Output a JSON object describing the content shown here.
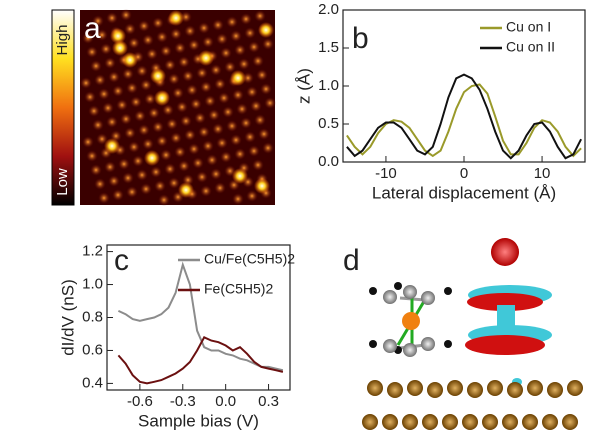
{
  "chart_data": [
    {
      "type": "image",
      "label": "a",
      "colorbar_labels": [
        "High",
        "Low"
      ]
    },
    {
      "type": "line",
      "label": "b",
      "xlabel": "Lateral displacement (Å)",
      "ylabel": "z (Å)",
      "x": [
        -15,
        -14,
        -13,
        -12,
        -11,
        -10,
        -9,
        -8,
        -7,
        -6,
        -5,
        -4,
        -3,
        -2,
        -1,
        0,
        1,
        2,
        3,
        4,
        5,
        6,
        7,
        8,
        9,
        10,
        11,
        12,
        13,
        14,
        15
      ],
      "series": [
        {
          "name": "Cu on I",
          "color": "#9a9a2a",
          "values": [
            0.35,
            0.2,
            0.1,
            0.2,
            0.38,
            0.5,
            0.55,
            0.53,
            0.45,
            0.3,
            0.15,
            0.08,
            0.15,
            0.4,
            0.7,
            0.92,
            1.0,
            1.02,
            0.9,
            0.6,
            0.28,
            0.1,
            0.1,
            0.25,
            0.45,
            0.55,
            0.52,
            0.4,
            0.2,
            0.08,
            0.18
          ]
        },
        {
          "name": "Cu on II",
          "color": "#111111",
          "values": [
            0.2,
            0.08,
            0.15,
            0.3,
            0.45,
            0.52,
            0.52,
            0.45,
            0.3,
            0.15,
            0.1,
            0.2,
            0.5,
            0.85,
            1.1,
            1.15,
            1.1,
            0.95,
            0.7,
            0.4,
            0.15,
            0.05,
            0.15,
            0.35,
            0.5,
            0.52,
            0.4,
            0.2,
            0.05,
            0.1,
            0.3
          ]
        }
      ],
      "xlim": [
        -15.5,
        15.5
      ],
      "xticks": [
        -10,
        0,
        10
      ],
      "ylim": [
        0,
        2
      ],
      "yticks": [
        {
          "value": 0,
          "label": "0.0"
        },
        {
          "value": 0.5,
          "label": "0.5"
        },
        {
          "value": 1,
          "label": "1.0"
        },
        {
          "value": 1.5,
          "label": "1.5"
        },
        {
          "value": 2,
          "label": "2.0"
        }
      ]
    },
    {
      "type": "line",
      "label": "c",
      "xlabel": "Sample bias (V)",
      "ylabel": "dI/dV (nS)",
      "x": [
        -0.75,
        -0.7,
        -0.65,
        -0.6,
        -0.55,
        -0.5,
        -0.45,
        -0.4,
        -0.35,
        -0.3,
        -0.25,
        -0.2,
        -0.15,
        -0.1,
        -0.05,
        0,
        0.05,
        0.1,
        0.15,
        0.2,
        0.25,
        0.3,
        0.35,
        0.4
      ],
      "series": [
        {
          "name": "Cu/Fe(C5H5)2",
          "color": "#8c8c8c",
          "values": [
            0.84,
            0.82,
            0.79,
            0.78,
            0.79,
            0.8,
            0.82,
            0.86,
            0.95,
            1.12,
            1.0,
            0.72,
            0.62,
            0.6,
            0.6,
            0.58,
            0.57,
            0.55,
            0.54,
            0.52,
            0.5,
            0.5,
            0.49,
            0.48
          ]
        },
        {
          "name": "Fe(C5H5)2",
          "color": "#6b1010",
          "values": [
            0.57,
            0.52,
            0.45,
            0.41,
            0.4,
            0.41,
            0.42,
            0.44,
            0.46,
            0.49,
            0.53,
            0.6,
            0.68,
            0.66,
            0.65,
            0.63,
            0.6,
            0.62,
            0.58,
            0.53,
            0.5,
            0.49,
            0.48,
            0.47
          ]
        }
      ],
      "xlim": [
        -0.83,
        0.45
      ],
      "xticks": [
        -0.6,
        -0.3,
        {
          "value": 0,
          "label": "0.0"
        },
        0.3
      ],
      "ylim": [
        0.36,
        1.24
      ],
      "yticks": [
        0.4,
        0.6,
        0.8,
        {
          "value": 1,
          "label": "1.0"
        },
        1.2
      ]
    },
    {
      "type": "image",
      "label": "d"
    }
  ]
}
